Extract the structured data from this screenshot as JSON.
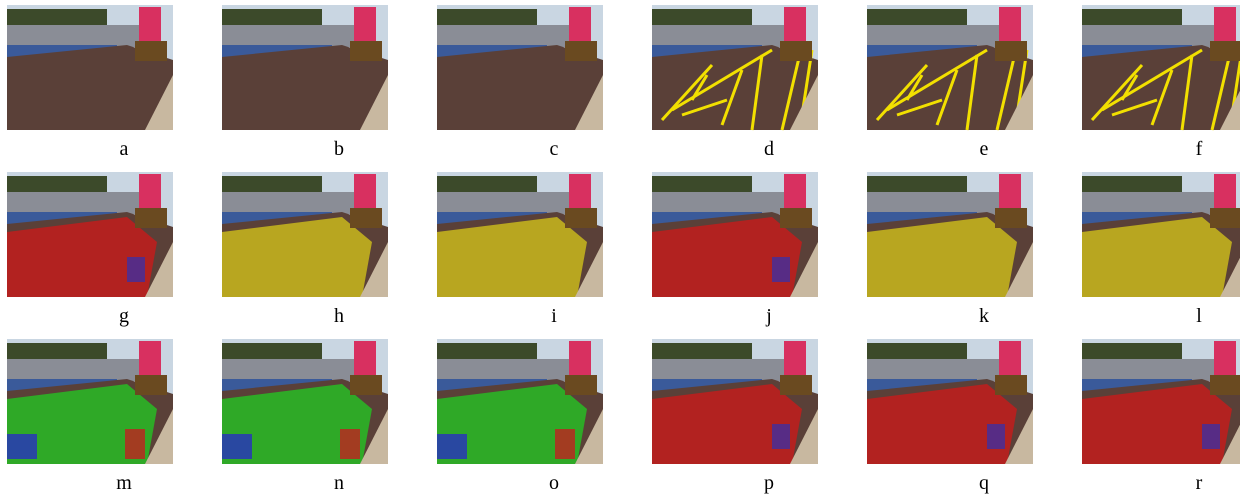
{
  "figure": {
    "panels": [
      {
        "label": "a"
      },
      {
        "label": "b"
      },
      {
        "label": "c"
      },
      {
        "label": "d"
      },
      {
        "label": "e"
      },
      {
        "label": "f"
      },
      {
        "label": "g"
      },
      {
        "label": "h"
      },
      {
        "label": "i"
      },
      {
        "label": "j"
      },
      {
        "label": "k"
      },
      {
        "label": "l"
      },
      {
        "label": "m"
      },
      {
        "label": "n"
      },
      {
        "label": "o"
      },
      {
        "label": "p"
      },
      {
        "label": "q"
      },
      {
        "label": "r"
      }
    ]
  }
}
